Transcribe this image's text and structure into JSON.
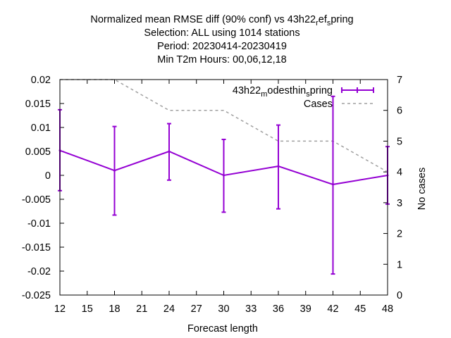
{
  "title": {
    "line1": "Normalized mean RMSE diff (90% conf) vs 43h22",
    "line1_sub1": "r",
    "line1_mid": "ef",
    "line1_sub2": "s",
    "line1_end": "pring",
    "line2": "Selection: ALL using  1014 stations",
    "line3": "Period: 20230414-20230419",
    "line4": "Min T2m   Hours:  00,06,12,18"
  },
  "legend": {
    "series1_main": "43h22",
    "series1_sub1": "m",
    "series1_mid": "odesthin",
    "series1_sub2": "s",
    "series1_end": "pring",
    "series2": "Cases"
  },
  "chart_data": {
    "type": "line",
    "xlabel": "Forecast length",
    "y2label": "No cases",
    "xlim": [
      12,
      48
    ],
    "ylim": [
      -0.025,
      0.02
    ],
    "y2lim": [
      0,
      7
    ],
    "xticks": [
      "12",
      "15",
      "18",
      "21",
      "24",
      "27",
      "30",
      "33",
      "36",
      "39",
      "42",
      "45",
      "48"
    ],
    "yticks": [
      "0.02",
      "0.015",
      "0.01",
      "0.005",
      "0",
      "-0.005",
      "-0.01",
      "-0.015",
      "-0.02",
      "-0.025"
    ],
    "y2ticks": [
      "7",
      "6",
      "5",
      "4",
      "3",
      "2",
      "1",
      "0"
    ],
    "series": [
      {
        "color": "#9400d3",
        "points": [
          {
            "x": 12,
            "y": 0.0052,
            "lo": -0.0032,
            "hi": 0.0137
          },
          {
            "x": 18,
            "y": 0.001,
            "lo": -0.0083,
            "hi": 0.0102
          },
          {
            "x": 24,
            "y": 0.005,
            "lo": -0.001,
            "hi": 0.0108
          },
          {
            "x": 30,
            "y": 0.0,
            "lo": -0.0077,
            "hi": 0.0075
          },
          {
            "x": 36,
            "y": 0.0019,
            "lo": -0.007,
            "hi": 0.0105
          },
          {
            "x": 42,
            "y": -0.0019,
            "lo": -0.0206,
            "hi": 0.0165
          },
          {
            "x": 48,
            "y": 0.0,
            "lo": -0.006,
            "hi": 0.006
          }
        ]
      },
      {
        "color": "#a0a0a0",
        "axis": "y2",
        "x": [
          12,
          18,
          24,
          30,
          36,
          42,
          48
        ],
        "values": [
          7,
          7,
          6,
          6,
          5,
          5,
          4
        ]
      }
    ]
  }
}
